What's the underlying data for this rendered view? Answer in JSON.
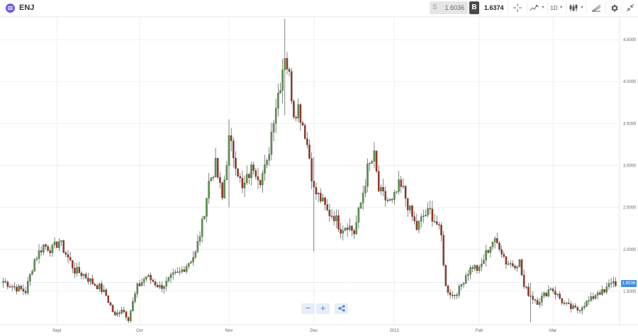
{
  "header": {
    "symbol": "ENJ",
    "logo_icon": "enjin-logo",
    "sell": {
      "label": "S",
      "price": "1.6036"
    },
    "buy": {
      "label": "B",
      "price": "1.6374"
    },
    "interval": "1D"
  },
  "toolbar": {
    "icons": [
      "crosshair-icon",
      "indicators-icon",
      "interval-dropdown",
      "candlestick-icon",
      "draw-icon",
      "settings-icon",
      "collapse-icon"
    ]
  },
  "chart_data": {
    "type": "candlestick",
    "y_ticks": [
      "4.5000",
      "4.0000",
      "3.5000",
      "3.0000",
      "2.5000",
      "2.0000",
      "1.5000"
    ],
    "y_range": [
      1.05,
      4.9
    ],
    "x_labels": [
      "Sept",
      "Oct",
      "Nov",
      "Dec",
      "2022",
      "Feb",
      "Mar"
    ],
    "current_price": "1.6036",
    "colors": {
      "up": "#5a9a4a",
      "down": "#a6321e",
      "grid": "#f0f0f0"
    },
    "anchors": [
      [
        0,
        1.62
      ],
      [
        5,
        1.55
      ],
      [
        10,
        1.5
      ],
      [
        14,
        1.88
      ],
      [
        18,
        2.05
      ],
      [
        22,
        2.0
      ],
      [
        25,
        2.1
      ],
      [
        28,
        1.95
      ],
      [
        32,
        1.75
      ],
      [
        36,
        1.7
      ],
      [
        40,
        1.6
      ],
      [
        43,
        1.55
      ],
      [
        46,
        1.45
      ],
      [
        50,
        1.2
      ],
      [
        53,
        1.3
      ],
      [
        56,
        1.18
      ],
      [
        60,
        1.55
      ],
      [
        64,
        1.68
      ],
      [
        67,
        1.62
      ],
      [
        70,
        1.55
      ],
      [
        73,
        1.6
      ],
      [
        76,
        1.68
      ],
      [
        79,
        1.72
      ],
      [
        83,
        1.85
      ],
      [
        86,
        1.95
      ],
      [
        89,
        2.3
      ],
      [
        92,
        2.8
      ],
      [
        95,
        3.0
      ],
      [
        98,
        2.6
      ],
      [
        101,
        3.3
      ],
      [
        104,
        3.05
      ],
      [
        107,
        2.7
      ],
      [
        110,
        2.9
      ],
      [
        112,
        3.0
      ],
      [
        115,
        2.85
      ],
      [
        118,
        3.0
      ],
      [
        121,
        3.6
      ],
      [
        124,
        4.0
      ],
      [
        126,
        4.35
      ],
      [
        128,
        4.05
      ],
      [
        130,
        3.65
      ],
      [
        132,
        3.7
      ],
      [
        135,
        3.4
      ],
      [
        137,
        3.1
      ],
      [
        139,
        2.7
      ],
      [
        142,
        2.6
      ],
      [
        145,
        2.45
      ],
      [
        148,
        2.4
      ],
      [
        151,
        2.25
      ],
      [
        154,
        2.3
      ],
      [
        157,
        2.2
      ],
      [
        160,
        2.55
      ],
      [
        163,
        2.95
      ],
      [
        166,
        3.1
      ],
      [
        168,
        2.7
      ],
      [
        171,
        2.6
      ],
      [
        174,
        2.55
      ],
      [
        177,
        2.75
      ],
      [
        179,
        2.7
      ],
      [
        182,
        2.45
      ],
      [
        185,
        2.25
      ],
      [
        188,
        2.4
      ],
      [
        191,
        2.45
      ],
      [
        194,
        2.3
      ],
      [
        196,
        2.15
      ],
      [
        198,
        1.55
      ],
      [
        201,
        1.45
      ],
      [
        204,
        1.52
      ],
      [
        207,
        1.7
      ],
      [
        210,
        1.8
      ],
      [
        213,
        1.75
      ],
      [
        216,
        1.95
      ],
      [
        219,
        2.1
      ],
      [
        222,
        2.05
      ],
      [
        225,
        1.85
      ],
      [
        228,
        1.82
      ],
      [
        231,
        1.85
      ],
      [
        233,
        1.55
      ],
      [
        236,
        1.45
      ],
      [
        239,
        1.38
      ],
      [
        242,
        1.45
      ],
      [
        245,
        1.55
      ],
      [
        248,
        1.45
      ],
      [
        251,
        1.35
      ],
      [
        254,
        1.3
      ],
      [
        257,
        1.28
      ],
      [
        260,
        1.35
      ],
      [
        263,
        1.4
      ],
      [
        266,
        1.5
      ],
      [
        269,
        1.48
      ],
      [
        272,
        1.62
      ],
      [
        274,
        1.6
      ]
    ],
    "extreme_wicks": [
      [
        126,
        4.75,
        3.6
      ],
      [
        139,
        3.1,
        1.98
      ],
      [
        101,
        3.55,
        2.5
      ],
      [
        236,
        1.6,
        1.13
      ]
    ]
  }
}
